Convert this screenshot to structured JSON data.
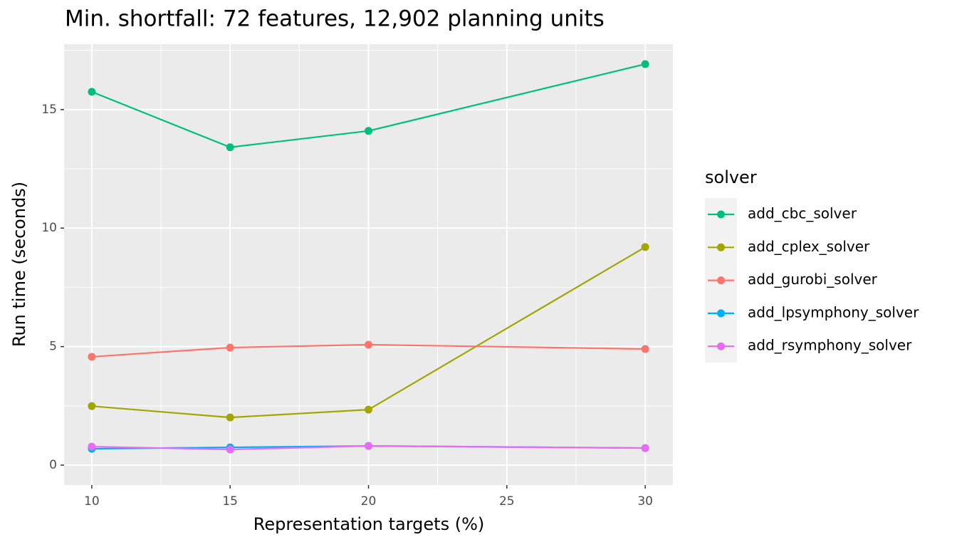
{
  "chart_data": {
    "type": "line",
    "title": "Min. shortfall: 72 features, 12,902 planning units",
    "x_label": "Representation targets (%)",
    "y_label": "Run time (seconds)",
    "legend_title": "solver",
    "x": [
      10,
      15,
      20,
      30
    ],
    "series": [
      {
        "name": "add_cbc_solver",
        "color": "#00BF7D",
        "values": [
          15.75,
          13.41,
          14.1,
          16.92
        ]
      },
      {
        "name": "add_cplex_solver",
        "color": "#A3A500",
        "values": [
          2.49,
          2.01,
          2.34,
          9.2
        ]
      },
      {
        "name": "add_gurobi_solver",
        "color": "#F8766D",
        "values": [
          4.57,
          4.96,
          5.08,
          4.9
        ]
      },
      {
        "name": "add_lpsymphony_solver",
        "color": "#00B0F6",
        "values": [
          0.69,
          0.75,
          0.81,
          0.72
        ]
      },
      {
        "name": "add_rsymphony_solver",
        "color": "#E76BF3",
        "values": [
          0.78,
          0.66,
          0.81,
          0.72
        ]
      }
    ],
    "xlim": [
      9,
      31
    ],
    "xticks": [
      10,
      15,
      20,
      25,
      30
    ],
    "xminor": [
      12.5,
      17.5,
      22.5,
      27.5
    ],
    "ylim": [
      -0.84,
      17.76
    ],
    "yticks": [
      0,
      5,
      10,
      15
    ],
    "yminor": [
      2.5,
      7.5,
      12.5,
      17.5
    ],
    "grid": true,
    "legend": "right"
  }
}
